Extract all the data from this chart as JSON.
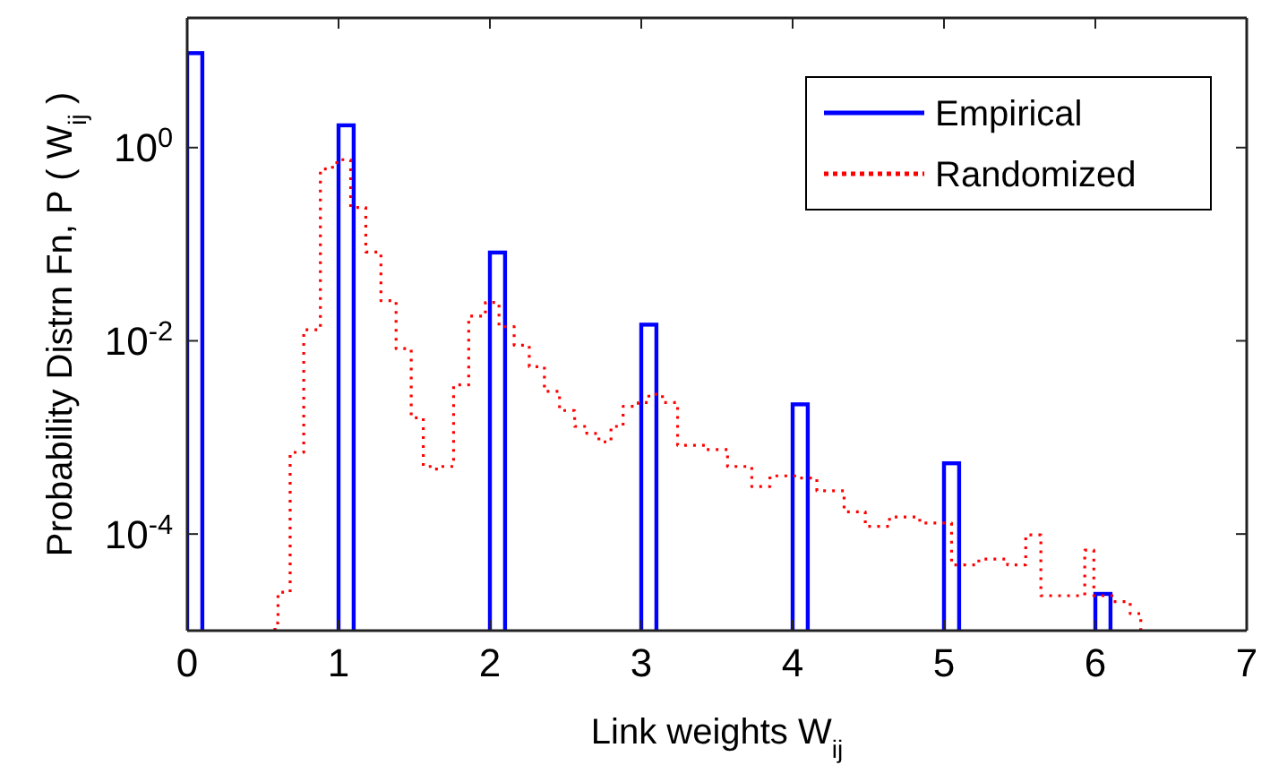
{
  "chart_data": {
    "type": "step",
    "xlabel": "Link weights W$_{ij}$",
    "ylabel": "Probability Distrn Fn, P ( W$_{ij}$ )",
    "xlim": [
      0,
      7
    ],
    "xticks": [
      0,
      1,
      2,
      3,
      4,
      5,
      6,
      7
    ],
    "ylim": [
      1e-05,
      22
    ],
    "yticks": [
      {
        "value": 0.0001,
        "label": "10$^{-4}$"
      },
      {
        "value": 0.01,
        "label": "10$^{-2}$"
      },
      {
        "value": 1,
        "label": "10$^{0}$"
      }
    ],
    "log": "y",
    "grid": false,
    "legend": "top right",
    "series": [
      {
        "name": "Empirical",
        "type": "bar",
        "color": "#0000ff",
        "line_style": "solid",
        "x": [
          0.05,
          1.05,
          2.05,
          3.05,
          4.05,
          5.05,
          6.05
        ],
        "values": [
          9.5,
          1.7,
          0.082,
          0.0147,
          0.0022,
          0.00054,
          2.4e-05
        ]
      },
      {
        "name": "Randomized",
        "color": "#ff0000",
        "line_style": "dotted",
        "x": [
          0.58,
          0.6,
          0.68,
          0.77,
          0.88,
          0.96,
          1.0,
          1.08,
          1.18,
          1.28,
          1.38,
          1.48,
          1.56,
          1.62,
          1.68,
          1.76,
          1.86,
          1.97,
          2.06,
          2.16,
          2.26,
          2.36,
          2.46,
          2.56,
          2.64,
          2.72,
          2.8,
          2.88,
          2.98,
          3.05,
          3.14,
          3.24,
          3.42,
          3.57,
          3.73,
          3.85,
          4.04,
          4.16,
          4.34,
          4.48,
          4.64,
          4.84,
          5.05,
          5.23,
          5.42,
          5.54,
          5.64,
          5.81,
          5.93,
          5.99,
          6.12,
          6.23,
          6.3
        ],
        "values": [
          1.2e-05,
          2.5e-05,
          0.0007,
          0.013,
          0.6,
          0.7,
          0.75,
          0.24,
          0.083,
          0.026,
          0.0083,
          0.0016,
          0.0005,
          0.00047,
          0.0005,
          0.0035,
          0.018,
          0.025,
          0.014,
          0.009,
          0.0054,
          0.003,
          0.0019,
          0.0013,
          0.0011,
          0.0009,
          0.0013,
          0.0021,
          0.0023,
          0.0028,
          0.0023,
          0.00083,
          0.00075,
          0.0005,
          0.00031,
          0.0004,
          0.00038,
          0.00028,
          0.00017,
          0.00012,
          0.00015,
          0.00013,
          4.8e-05,
          5.5e-05,
          4.8e-05,
          9.8e-05,
          2.3e-05,
          2.3e-05,
          6.8e-05,
          2.3e-05,
          2e-05,
          1.5e-05,
          1.5e-05
        ]
      }
    ]
  }
}
